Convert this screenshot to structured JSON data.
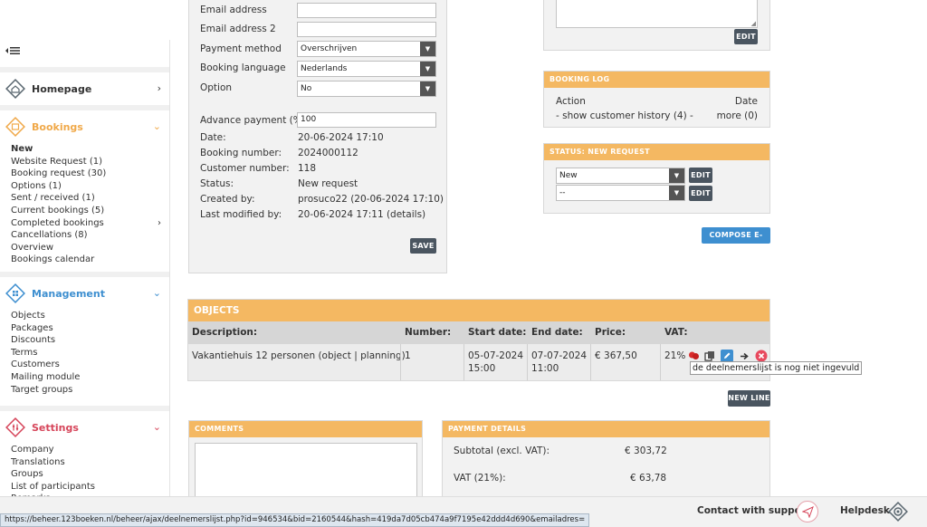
{
  "sidebar": {
    "homepage": {
      "label": "Homepage"
    },
    "bookings": {
      "label": "Bookings",
      "items": [
        "New",
        "Website Request (1)",
        "Booking request (30)",
        "Options (1)",
        "Sent / received (1)",
        "Current bookings (5)",
        "Completed bookings",
        "Cancellations (8)",
        "Overview",
        "Bookings calendar"
      ]
    },
    "management": {
      "label": "Management",
      "items": [
        "Objects",
        "Packages",
        "Discounts",
        "Terms",
        "Customers",
        "Mailing module",
        "Target groups"
      ]
    },
    "settings": {
      "label": "Settings",
      "items": [
        "Company",
        "Translations",
        "Groups",
        "List of participants",
        "Remarks"
      ]
    }
  },
  "booking": {
    "email_label": "Email address",
    "email_value": "",
    "email2_label": "Email address 2",
    "email2_value": "",
    "payment_label": "Payment method",
    "payment_value": "Overschrijven",
    "language_label": "Booking language",
    "language_value": "Nederlands",
    "option_label": "Option",
    "option_value": "No",
    "advance_label": "Advance payment (%):",
    "advance_value": "100",
    "date_label": "Date:",
    "date_value": "20-06-2024 17:10",
    "number_label": "Booking number:",
    "number_value": "2024000112",
    "customer_label": "Customer number:",
    "customer_value": "118",
    "status_label": "Status:",
    "status_value": "New request",
    "created_label": "Created by:",
    "created_value": "prosuco22 (20-06-2024 17:10)",
    "modified_label": "Last modified by:",
    "modified_value": "20-06-2024 17:11 (details)",
    "save_label": "SAVE"
  },
  "notes_box": {
    "edit_label": "EDIT"
  },
  "booking_log": {
    "title": "BOOKING LOG",
    "action_header": "Action",
    "date_header": "Date",
    "action_value": "- show customer history (4) -",
    "date_value": "more (0)"
  },
  "status_box": {
    "title": "STATUS: NEW REQUEST",
    "status_select": "New",
    "sub_select": "--",
    "edit_label": "EDIT",
    "edit2_label": "EDIT"
  },
  "compose_label": "COMPOSE E-MAIL",
  "objects": {
    "title": "OBJECTS",
    "headers": {
      "description": "Description:",
      "number": "Number:",
      "start": "Start date:",
      "end": "End date:",
      "price": "Price:",
      "vat": "VAT:"
    },
    "row": {
      "description": "Vakantiehuis 12 personen (object | planning)",
      "number": "1",
      "start_date": "05-07-2024",
      "start_time": "15:00",
      "end_date": "07-07-2024",
      "end_time": "11:00",
      "price": "€ 367,50",
      "vat": "21%"
    },
    "tooltip": "de deelnemerslijst is nog niet ingevuld",
    "new_line_label": "NEW LINE"
  },
  "comments": {
    "title": "COMMENTS"
  },
  "payment": {
    "title": "PAYMENT DETAILS",
    "subtotal_label": "Subtotal (excl. VAT):",
    "subtotal_value": "€ 303,72",
    "vat_label": "VAT (21%):",
    "vat_value": "€ 63,78"
  },
  "footer": {
    "support_label": "Contact with support",
    "helpdesk_label": "Helpdesk"
  },
  "status_url": "https://beheer.123boeken.nl/beheer/ajax/deelnemerslijst.php?id=946534&bid=2160544&hash=419da7d05cb474a9f7195e42ddd4d690&emailadres="
}
